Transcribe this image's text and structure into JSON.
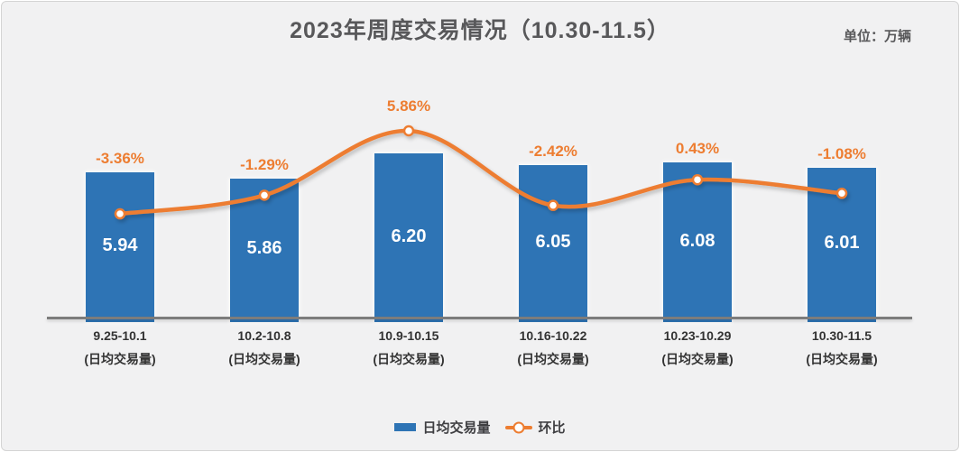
{
  "title": "2023年周度交易情况（10.30-11.5）",
  "unit_label": "单位：万辆",
  "legend": {
    "bar_label": "日均交易量",
    "line_label": "环比"
  },
  "colors": {
    "bar": "#2e74b5",
    "line": "#ed7d31",
    "pct_label_text": "#ed7d31",
    "title_text": "#58585a",
    "axis_line": "#7c7c7c",
    "tick_text": "#333333",
    "bar_value_text": "#ffffff",
    "panel_bg": "#f1f1f2",
    "panel_border": "#d4d4d4"
  },
  "chart_data": {
    "type": "bar",
    "title": "2023年周度交易情况（10.30-11.5）",
    "unit": "万辆",
    "categories": [
      "9.25-10.1",
      "10.2-10.8",
      "10.9-10.15",
      "10.16-10.22",
      "10.23-10.29",
      "10.30-11.5"
    ],
    "category_sublabel": "(日均交易量)",
    "series": [
      {
        "name": "日均交易量",
        "type": "bar",
        "values": [
          5.94,
          5.86,
          6.2,
          6.05,
          6.08,
          6.01
        ],
        "value_labels": [
          "5.94",
          "5.86",
          "6.20",
          "6.05",
          "6.08",
          "6.01"
        ]
      },
      {
        "name": "环比",
        "type": "line",
        "values": [
          -3.36,
          -1.29,
          5.86,
          -2.42,
          0.43,
          -1.08
        ],
        "value_labels": [
          "-3.36%",
          "-1.29%",
          "5.86%",
          "-2.42%",
          "0.43%",
          "-1.08%"
        ]
      }
    ],
    "legend_position": "bottom",
    "grid": false,
    "y_axes_visible": false
  }
}
